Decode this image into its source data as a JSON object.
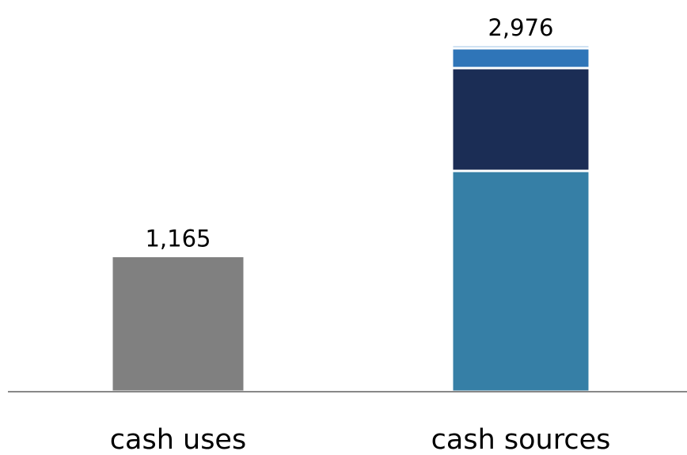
{
  "chart_data": {
    "type": "stacked-bar",
    "categories": [
      "cash uses",
      "cash sources"
    ],
    "series": [
      {
        "color": "#808080",
        "values": [
          1165,
          null
        ]
      },
      {
        "color": "#367fa6",
        "values": [
          null,
          1896
        ]
      },
      {
        "color": "#1b2d55",
        "values": [
          null,
          883
        ]
      },
      {
        "color": "#2f75b8",
        "values": [
          null,
          170
        ]
      },
      {
        "color": "#9dc3e6",
        "values": [
          null,
          27
        ]
      }
    ],
    "totals": {
      "values": [
        1165,
        2976
      ],
      "value_labels": [
        "1,165",
        "2,976"
      ]
    },
    "ylim": [
      0,
      3000
    ]
  }
}
